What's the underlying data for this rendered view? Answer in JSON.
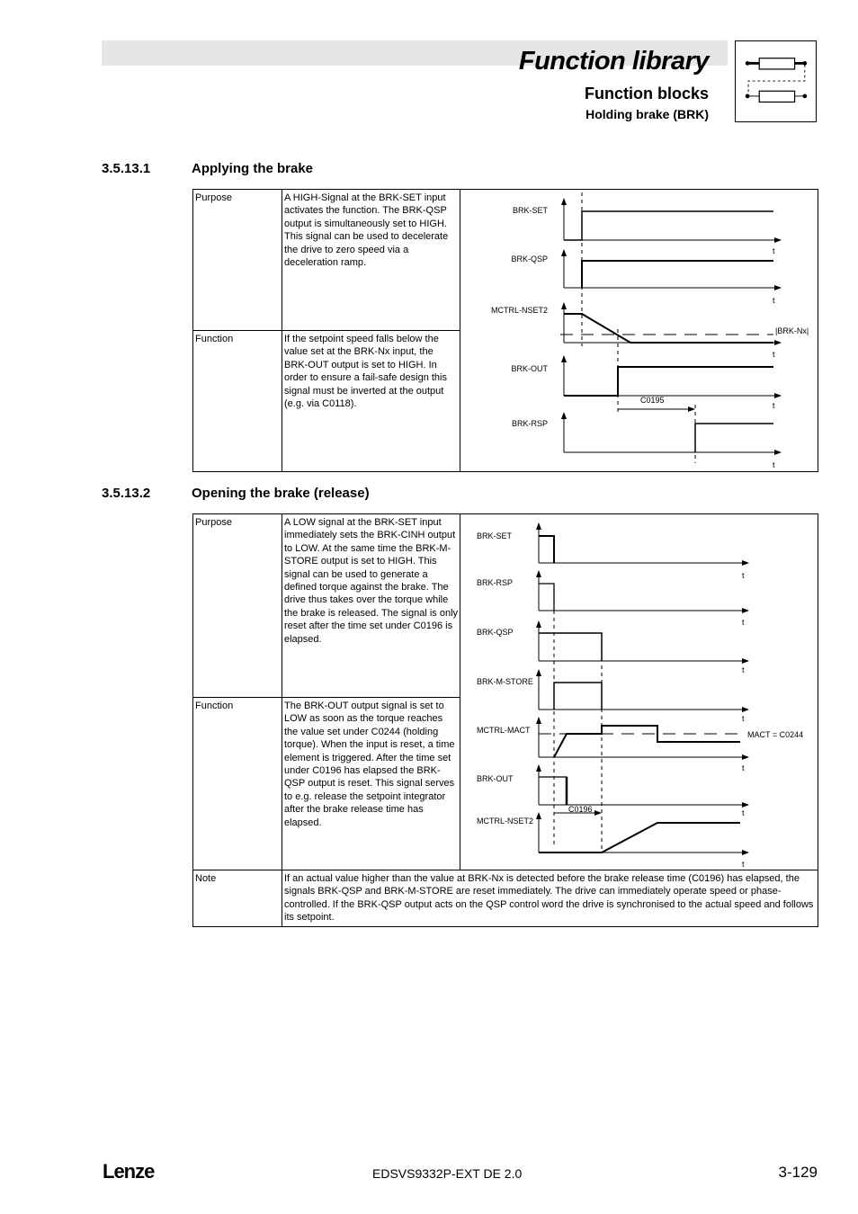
{
  "header": {
    "title": "Function library",
    "subtitle": "Function blocks",
    "section": "Holding brake (BRK)",
    "icon": "function-block-icon"
  },
  "sections": [
    {
      "number": "3.5.13.1",
      "title": "Applying the brake",
      "rows": [
        {
          "label": "Purpose",
          "text": "A HIGH-Signal at the BRK-SET input activates the function. The BRK-QSP output is simultaneously set to HIGH. This signal can be used to decelerate the drive to zero speed via a deceleration ramp."
        },
        {
          "label": "Function",
          "text": "If the setpoint speed falls below the value set at the BRK-Nx input, the BRK-OUT output is set to HIGH. In order to ensure a fail-safe design this signal must be inverted at the output (e.g. via C0118)."
        }
      ],
      "diagram": {
        "signals": [
          "BRK-SET",
          "BRK-QSP",
          "MCTRL-NSET2",
          "BRK-OUT",
          "BRK-RSP"
        ],
        "time_axis": "t",
        "threshold_label": "|BRK-Nx|",
        "delay_label": "C0195"
      }
    },
    {
      "number": "3.5.13.2",
      "title": "Opening the brake (release)",
      "rows": [
        {
          "label": "Purpose",
          "text": "A LOW signal at the BRK-SET input immediately sets the BRK-CINH output to LOW. At the same time the BRK-M-STORE output is set to HIGH. This signal can be used to generate a defined torque against the brake. The drive thus takes over the torque while the brake is released. The signal is only reset after the time set under C0196 is elapsed."
        },
        {
          "label": "Function",
          "text": "The BRK-OUT output signal is set to LOW as soon as the torque reaches the value set under C0244 (holding torque). When the input is reset, a time element is triggered. After the time set under C0196 has elapsed the BRK-QSP output is reset. This signal serves to e.g. release the setpoint integrator after the brake release time has elapsed."
        },
        {
          "label": "Note",
          "text": "If an actual value higher than the value at BRK-Nx is detected before the brake release time (C0196) has elapsed, the signals BRK-QSP and BRK-M-STORE are reset immediately. The drive can immediately operate speed or phase-controlled. If the BRK-QSP output acts on the QSP control word the drive is synchronised to the actual speed and follows its setpoint."
        }
      ],
      "diagram": {
        "signals": [
          "BRK-SET",
          "BRK-RSP",
          "BRK-QSP",
          "BRK-M-STORE",
          "MCTRL-MACT",
          "BRK-OUT",
          "MCTRL-NSET2"
        ],
        "time_axis": "t",
        "threshold_label": "MACT = C0244",
        "delay_label": "C0196"
      }
    }
  ],
  "footer": {
    "logo": "Lenze",
    "doc": "EDSVS9332P-EXT DE 2.0",
    "page": "3-129"
  }
}
